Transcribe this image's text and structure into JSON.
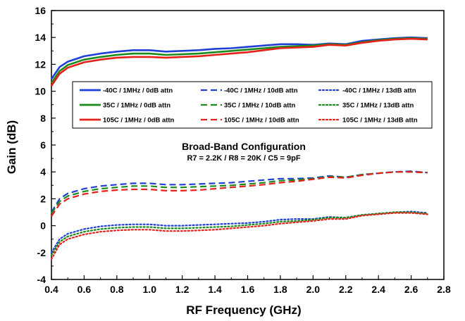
{
  "chart_data": {
    "type": "line",
    "title": "",
    "xlabel": "RF Frequency (GHz)",
    "ylabel": "Gain (dB)",
    "xlim": [
      0.4,
      2.8
    ],
    "ylim": [
      -4,
      16
    ],
    "xticks": [
      "0.4",
      "0.6",
      "0.8",
      "1.0",
      "1.2",
      "1.4",
      "1.6",
      "1.8",
      "2.0",
      "2.2",
      "2.4",
      "2.6",
      "2.8"
    ],
    "yticks": [
      "-4",
      "-2",
      "0",
      "2",
      "4",
      "6",
      "8",
      "10",
      "12",
      "14",
      "16"
    ],
    "grid": false,
    "legend_position": "upper-center",
    "annotation": {
      "title": "Broad-Band Configuration",
      "subtitle": "R7 = 2.2K / R8 = 20K / C5 = 9pF"
    },
    "x": [
      0.4,
      0.45,
      0.5,
      0.6,
      0.7,
      0.8,
      0.9,
      1.0,
      1.1,
      1.2,
      1.3,
      1.4,
      1.5,
      1.6,
      1.7,
      1.8,
      1.9,
      2.0,
      2.1,
      2.2,
      2.3,
      2.4,
      2.5,
      2.6,
      2.7
    ],
    "series": [
      {
        "name": "-40C /  1MHz /  0dB attn",
        "color": "#1f3fd6",
        "style": "solid",
        "values": [
          10.9,
          11.8,
          12.2,
          12.6,
          12.8,
          12.95,
          13.05,
          13.05,
          12.95,
          13.0,
          13.05,
          13.15,
          13.2,
          13.3,
          13.4,
          13.5,
          13.5,
          13.45,
          13.55,
          13.5,
          13.75,
          13.85,
          13.95,
          14.0,
          13.95
        ]
      },
      {
        "name": "-40C /  1MHz /  10dB attn",
        "color": "#1f3fd6",
        "style": "dashed",
        "values": [
          1.0,
          2.0,
          2.4,
          2.75,
          2.95,
          3.05,
          3.15,
          3.15,
          3.05,
          3.05,
          3.1,
          3.15,
          3.2,
          3.3,
          3.4,
          3.5,
          3.5,
          3.55,
          3.7,
          3.6,
          3.8,
          3.9,
          4.0,
          4.05,
          3.95
        ]
      },
      {
        "name": "-40C /  1MHz /  13dB attn",
        "color": "#1f3fd6",
        "style": "dotted",
        "values": [
          -2.0,
          -1.0,
          -0.6,
          -0.25,
          -0.05,
          0.05,
          0.1,
          0.1,
          0.0,
          0.0,
          0.05,
          0.1,
          0.15,
          0.2,
          0.3,
          0.45,
          0.5,
          0.5,
          0.65,
          0.6,
          0.8,
          0.9,
          1.0,
          1.05,
          0.95
        ]
      },
      {
        "name": "35C /  1MHz /  0dB attn",
        "color": "#1a8a1a",
        "style": "solid",
        "values": [
          10.6,
          11.5,
          11.95,
          12.35,
          12.55,
          12.7,
          12.8,
          12.8,
          12.7,
          12.75,
          12.8,
          12.9,
          13.0,
          13.1,
          13.2,
          13.3,
          13.35,
          13.4,
          13.5,
          13.45,
          13.65,
          13.8,
          13.9,
          13.95,
          13.9
        ]
      },
      {
        "name": "35C /  1MHz /  10dB attn",
        "color": "#1a8a1a",
        "style": "dashed",
        "values": [
          0.9,
          1.8,
          2.2,
          2.55,
          2.75,
          2.85,
          2.95,
          2.95,
          2.85,
          2.85,
          2.9,
          2.95,
          3.0,
          3.1,
          3.2,
          3.35,
          3.4,
          3.5,
          3.65,
          3.6,
          3.8,
          3.9,
          4.0,
          4.0,
          3.95
        ]
      },
      {
        "name": "35C /  1MHz /  13dB attn",
        "color": "#1a8a1a",
        "style": "dotted",
        "values": [
          -2.2,
          -1.2,
          -0.8,
          -0.45,
          -0.25,
          -0.15,
          -0.1,
          -0.1,
          -0.2,
          -0.2,
          -0.15,
          -0.1,
          -0.05,
          0.05,
          0.15,
          0.3,
          0.35,
          0.45,
          0.6,
          0.6,
          0.8,
          0.9,
          1.0,
          1.0,
          0.9
        ]
      },
      {
        "name": "105C /  1MHz /  0dB attn",
        "color": "#e8201a",
        "style": "solid",
        "values": [
          10.4,
          11.3,
          11.75,
          12.15,
          12.35,
          12.5,
          12.55,
          12.55,
          12.5,
          12.55,
          12.6,
          12.7,
          12.8,
          12.9,
          13.05,
          13.2,
          13.25,
          13.3,
          13.45,
          13.4,
          13.6,
          13.75,
          13.85,
          13.9,
          13.85
        ]
      },
      {
        "name": "105C /  1MHz /  10dB attn",
        "color": "#e8201a",
        "style": "dashed",
        "values": [
          0.7,
          1.6,
          2.0,
          2.35,
          2.55,
          2.65,
          2.7,
          2.7,
          2.6,
          2.6,
          2.65,
          2.75,
          2.85,
          2.95,
          3.05,
          3.2,
          3.3,
          3.45,
          3.6,
          3.55,
          3.75,
          3.9,
          4.0,
          4.0,
          3.95
        ]
      },
      {
        "name": "105C /  1MHz /  13dB attn",
        "color": "#e8201a",
        "style": "dotted",
        "values": [
          -2.5,
          -1.4,
          -1.0,
          -0.65,
          -0.45,
          -0.35,
          -0.3,
          -0.3,
          -0.4,
          -0.4,
          -0.35,
          -0.3,
          -0.2,
          -0.1,
          0.0,
          0.15,
          0.25,
          0.35,
          0.5,
          0.5,
          0.75,
          0.85,
          0.95,
          0.95,
          0.85
        ]
      }
    ]
  }
}
